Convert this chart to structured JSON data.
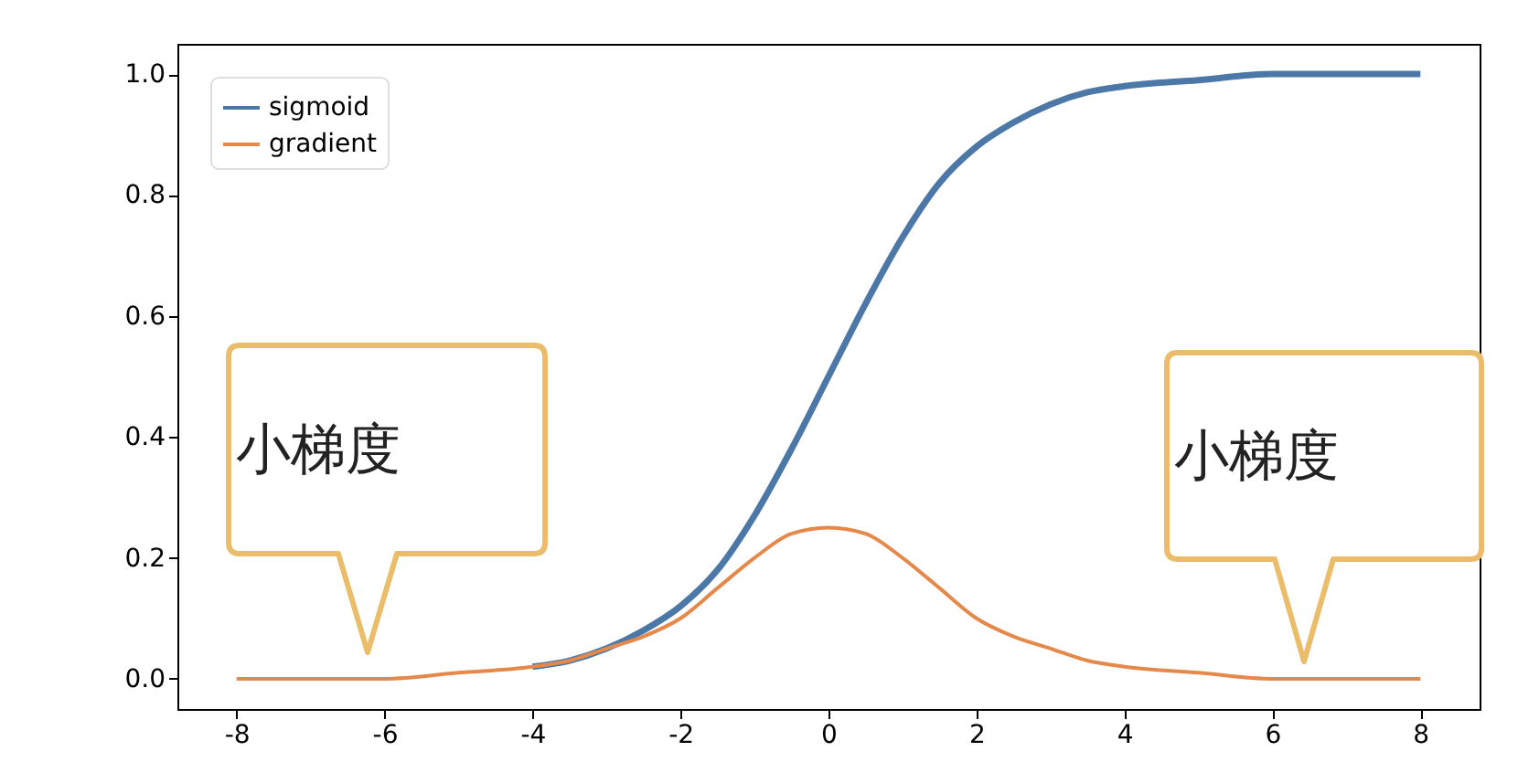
{
  "chart_data": {
    "type": "line",
    "x": [
      -8,
      -7,
      -6,
      -5,
      -4,
      -3.5,
      -3,
      -2.5,
      -2,
      -1.5,
      -1,
      -0.5,
      0,
      0.5,
      1,
      1.5,
      2,
      2.5,
      3,
      3.5,
      4,
      5,
      6,
      7,
      8
    ],
    "series": [
      {
        "name": "sigmoid",
        "color": "#4c78a8",
        "values": [
          null,
          null,
          null,
          null,
          0.02,
          0.03,
          0.05,
          0.08,
          0.12,
          0.18,
          0.27,
          0.38,
          0.5,
          0.62,
          0.73,
          0.82,
          0.88,
          0.92,
          0.95,
          0.97,
          0.98,
          0.99,
          1.0,
          1.0,
          1.0
        ]
      },
      {
        "name": "gradient",
        "color": "#e5894a",
        "values": [
          0.0,
          0.0,
          0.0,
          0.01,
          0.02,
          0.03,
          0.05,
          0.07,
          0.1,
          0.15,
          0.2,
          0.24,
          0.25,
          0.24,
          0.2,
          0.15,
          0.1,
          0.07,
          0.05,
          0.03,
          0.02,
          0.01,
          0.0,
          0.0,
          0.0
        ]
      }
    ],
    "xlim": [
      -8.8,
      8.8
    ],
    "ylim": [
      -0.05,
      1.05
    ],
    "xticks": [
      -8,
      -6,
      -4,
      -2,
      0,
      2,
      4,
      6,
      8
    ],
    "yticks": [
      {
        "value": 0,
        "label": "0.0"
      },
      0.2,
      0.4,
      0.6,
      0.8,
      {
        "value": 1,
        "label": "1.0"
      }
    ],
    "legend": "top left",
    "annotations": [
      "小梯度",
      "小梯度"
    ]
  }
}
